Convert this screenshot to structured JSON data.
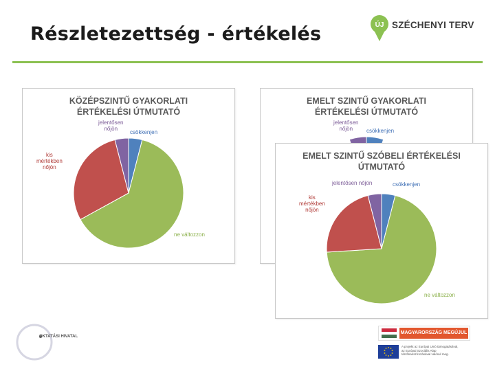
{
  "slide": {
    "title": "Részletezettség - értékelés",
    "accent_color": "#8cc152"
  },
  "logo": {
    "badge": "ÚJ",
    "text": "SZÉCHENYI TERV",
    "icon": "map-pin-icon"
  },
  "footer": {
    "left_logo_text": "OKTATÁSI HIVATAL",
    "banner_text": "MAGYARORSZÁG MEGÚJUL",
    "eu_text": "A projekt az Európai Unió támogatásával,\naz Európai Szociális Alap\ntársfinanszírozásával valósul meg."
  },
  "chart_data": [
    {
      "type": "pie",
      "title": [
        "KÖZÉPSZINTŰ GYAKORLATI",
        "ÉRTÉKELÉSI ÚTMUTATÓ"
      ],
      "slices": [
        {
          "label": "csökkenjen",
          "value": 4,
          "color": "#4f81bd"
        },
        {
          "label": "ne változzon",
          "value": 63,
          "color": "#9bbb59"
        },
        {
          "label": "kis mértékben nőjön",
          "label_lines": [
            "kis",
            "mértékben",
            "nőjön"
          ],
          "value": 29,
          "color": "#c0504d"
        },
        {
          "label": "jelentősen nőjön",
          "label_lines": [
            "jelentősen",
            "nőjön"
          ],
          "value": 4,
          "color": "#8064a2"
        }
      ]
    },
    {
      "type": "pie",
      "title": [
        "EMELT SZINTŰ GYAKORLATI",
        "ÉRTÉKELÉSI ÚTMUTATÓ"
      ],
      "slices": [
        {
          "label": "csökkenjen",
          "value": 5,
          "color": "#4f81bd"
        },
        {
          "label": "jelentősen nőjön",
          "label_lines": [
            "jelentősen",
            "nőjön"
          ],
          "value": 5,
          "color": "#8064a2"
        }
      ]
    },
    {
      "type": "pie",
      "title": [
        "EMELT SZINTŰ SZÓBELI ÉRTÉKELÉSI",
        "ÚTMUTATÓ"
      ],
      "slices": [
        {
          "label": "csökkenjen",
          "value": 4,
          "color": "#4f81bd"
        },
        {
          "label": "ne változzon",
          "value": 70,
          "color": "#9bbb59"
        },
        {
          "label": "kis mértékben nőjön",
          "label_lines": [
            "kis",
            "mértékben",
            "nőjön"
          ],
          "value": 22,
          "color": "#c0504d"
        },
        {
          "label": "jelentősen nőjön",
          "value": 4,
          "color": "#8064a2"
        }
      ]
    }
  ]
}
